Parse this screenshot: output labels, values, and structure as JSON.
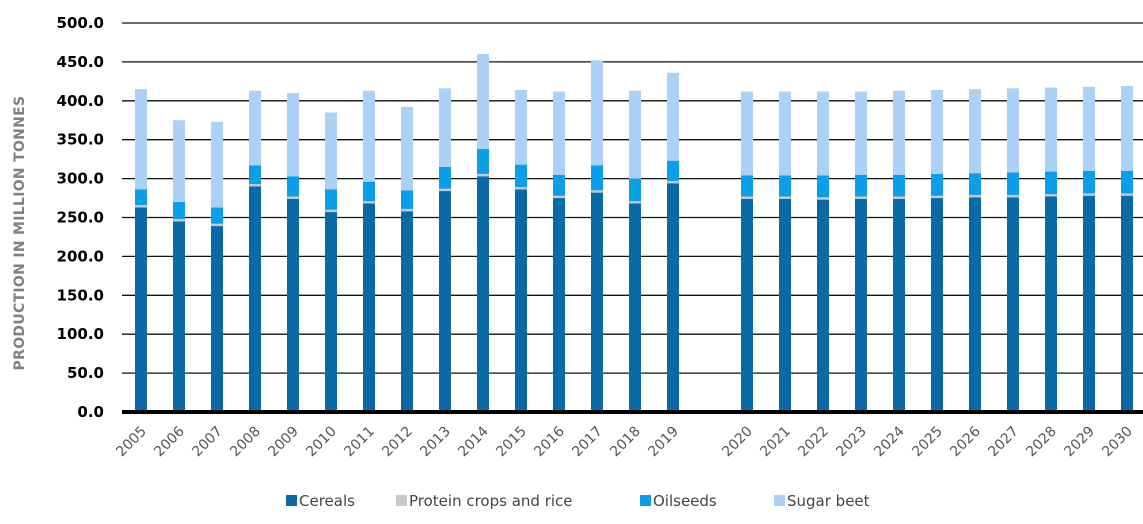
{
  "chart_data": {
    "type": "bar",
    "stacked": true,
    "title": "",
    "xlabel": "",
    "ylabel": "PRODUCTION IN MILLION TONNES",
    "ylim": [
      0,
      500
    ],
    "yticks": [
      "0.0",
      "50.0",
      "100.0",
      "150.0",
      "200.0",
      "250.0",
      "300.0",
      "350.0",
      "400.0",
      "450.0",
      "500.0"
    ],
    "grid": true,
    "legend_position": "bottom",
    "categories": [
      "2005",
      "2006",
      "2007",
      "2008",
      "2009",
      "2010",
      "2011",
      "2012",
      "2013",
      "2014",
      "2015",
      "2016",
      "2017",
      "2018",
      "2019",
      "2020",
      "2021",
      "2022",
      "2023",
      "2024",
      "2025",
      "2026",
      "2027",
      "2028",
      "2029",
      "2030"
    ],
    "series": [
      {
        "name": "Cereals",
        "color": "#0a6aa8",
        "values": [
          263,
          245,
          239,
          290,
          274,
          257,
          268,
          258,
          284,
          303,
          286,
          275,
          282,
          268,
          294,
          274,
          274,
          273,
          274,
          274,
          275,
          276,
          276,
          277,
          278,
          278
        ]
      },
      {
        "name": "Protein crops and rice",
        "color": "#c8c8c8",
        "values": [
          3,
          3,
          3,
          3,
          3,
          3,
          3,
          3,
          3,
          3,
          3,
          3,
          3,
          3,
          3,
          3,
          3,
          3,
          3,
          3,
          3,
          3,
          3,
          3,
          3,
          3
        ]
      },
      {
        "name": "Oilseeds",
        "color": "#0a9de8",
        "values": [
          20,
          22,
          21,
          24,
          26,
          26,
          25,
          24,
          28,
          32,
          29,
          27,
          32,
          29,
          26,
          27,
          27,
          28,
          28,
          28,
          28,
          28,
          29,
          29,
          29,
          29
        ]
      },
      {
        "name": "Sugar beet",
        "color": "#abd2f5",
        "values": [
          129,
          105,
          110,
          96,
          107,
          99,
          117,
          107,
          101,
          122,
          96,
          107,
          135,
          113,
          113,
          108,
          108,
          108,
          107,
          108,
          108,
          108,
          108,
          108,
          108,
          109
        ]
      }
    ]
  }
}
